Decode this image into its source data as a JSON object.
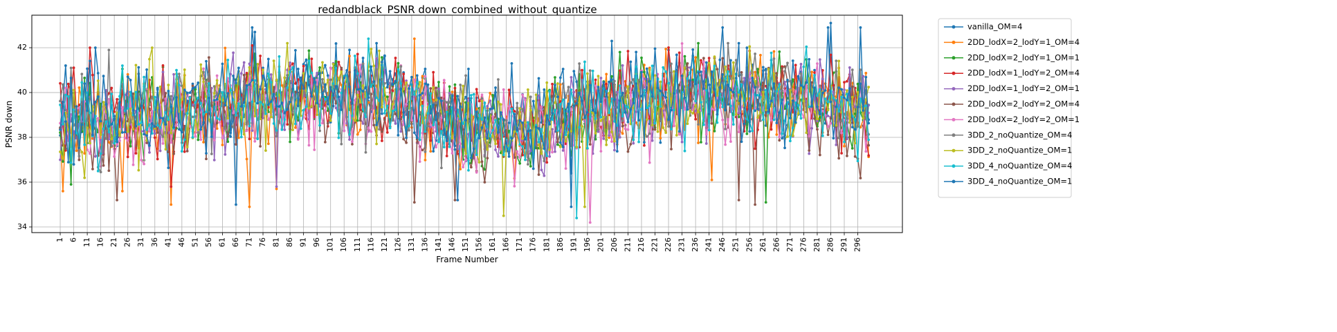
{
  "chart_data": {
    "type": "line",
    "title": "redandblack_PSNR down_combined_without_quantize",
    "xlabel": "Frame Number",
    "ylabel": "PSNR down",
    "xlim": [
      -9.5,
      312.5
    ],
    "ylim": [
      33.75,
      43.45
    ],
    "x_ticks": [
      1,
      6,
      11,
      16,
      21,
      26,
      31,
      36,
      41,
      46,
      51,
      56,
      61,
      66,
      71,
      76,
      81,
      86,
      91,
      96,
      101,
      106,
      111,
      116,
      121,
      126,
      131,
      136,
      141,
      146,
      151,
      156,
      161,
      166,
      171,
      176,
      181,
      186,
      191,
      196,
      201,
      206,
      211,
      216,
      221,
      226,
      231,
      236,
      241,
      246,
      251,
      256,
      261,
      266,
      271,
      276,
      281,
      286,
      291,
      296
    ],
    "y_ticks": [
      34,
      36,
      38,
      40,
      42
    ],
    "grid": true,
    "legend_position": "outside-right",
    "frame_count": 300,
    "series": [
      {
        "name": "vanilla_OM=4",
        "color": "#1f77b4",
        "base": 39.6,
        "seed": 11,
        "extremes": [
          [
            3,
            41.2
          ],
          [
            14,
            42.0
          ],
          [
            66,
            35.0
          ],
          [
            72,
            42.9
          ],
          [
            118,
            42.2
          ],
          [
            148,
            35.2
          ],
          [
            190,
            34.9
          ],
          [
            205,
            42.3
          ],
          [
            246,
            42.9
          ],
          [
            286,
            43.1
          ],
          [
            297,
            42.9
          ]
        ]
      },
      {
        "name": "2DD_lodX=2_lodY=1_OM=4",
        "color": "#ff7f0e",
        "base": 39.3,
        "seed": 23,
        "extremes": [
          [
            2,
            35.6
          ],
          [
            24,
            35.6
          ],
          [
            42,
            35.0
          ],
          [
            71,
            34.9
          ],
          [
            81,
            35.7
          ],
          [
            132,
            42.4
          ],
          [
            242,
            36.1
          ]
        ]
      },
      {
        "name": "2DD_lodX=2_lodY=1_OM=1",
        "color": "#2ca02c",
        "base": 39.4,
        "seed": 37,
        "extremes": [
          [
            5,
            35.9
          ],
          [
            262,
            35.1
          ]
        ]
      },
      {
        "name": "2DD_lodX=1_lodY=2_OM=4",
        "color": "#d62728",
        "base": 39.5,
        "seed": 41,
        "extremes": [
          [
            12,
            42.0
          ],
          [
            42,
            35.8
          ],
          [
            72,
            42.1
          ]
        ]
      },
      {
        "name": "2DD_lodX=1_lodY=2_OM=1",
        "color": "#9467bd",
        "base": 39.3,
        "seed": 53,
        "extremes": [
          [
            81,
            35.8
          ]
        ]
      },
      {
        "name": "2DD_lodX=2_lodY=2_OM=4",
        "color": "#8c564b",
        "base": 39.1,
        "seed": 67,
        "extremes": [
          [
            22,
            35.2
          ],
          [
            132,
            35.1
          ],
          [
            147,
            35.2
          ],
          [
            252,
            35.2
          ],
          [
            258,
            35.0
          ]
        ]
      },
      {
        "name": "2DD_lodX=2_lodY=2_OM=1",
        "color": "#e377c2",
        "base": 39.1,
        "seed": 71,
        "extremes": [
          [
            197,
            34.2
          ]
        ]
      },
      {
        "name": "3DD_2_noQuantize_OM=4",
        "color": "#7f7f7f",
        "base": 39.5,
        "seed": 83,
        "extremes": [
          [
            19,
            41.9
          ]
        ]
      },
      {
        "name": "3DD_2_noQuantize_OM=1",
        "color": "#bcbd22",
        "base": 39.4,
        "seed": 97,
        "extremes": [
          [
            35,
            42.0
          ],
          [
            165,
            34.5
          ],
          [
            195,
            34.9
          ]
        ]
      },
      {
        "name": "3DD_4_noQuantize_OM=4",
        "color": "#17becf",
        "base": 39.4,
        "seed": 101,
        "extremes": [
          [
            115,
            42.4
          ],
          [
            192,
            34.4
          ]
        ]
      },
      {
        "name": "3DD_4_noQuantize_OM=1",
        "color": "#1f77b4",
        "base": 39.6,
        "seed": 113,
        "extremes": [
          [
            73,
            42.7
          ],
          [
            190,
            36.4
          ],
          [
            285,
            42.9
          ]
        ]
      }
    ]
  }
}
